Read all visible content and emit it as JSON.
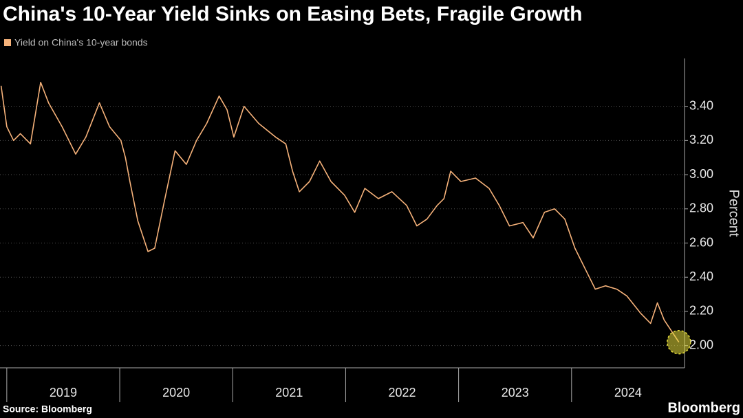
{
  "chart_data": {
    "type": "line",
    "title": "China's 10-Year Yield Sinks on Easing Bets, Fragile Growth",
    "ylabel": "Percent",
    "source": "Source: Bloomberg",
    "brand": "Bloomberg",
    "series": [
      {
        "name": "Yield on China's 10-year bonds",
        "color": "#f6b27a",
        "x": [
          2018.95,
          2019.0,
          2019.06,
          2019.12,
          2019.21,
          2019.3,
          2019.37,
          2019.49,
          2019.61,
          2019.7,
          2019.82,
          2019.91,
          2020.01,
          2020.05,
          2020.09,
          2020.16,
          2020.25,
          2020.31,
          2020.4,
          2020.49,
          2020.59,
          2020.68,
          2020.77,
          2020.88,
          2020.95,
          2021.01,
          2021.1,
          2021.23,
          2021.38,
          2021.47,
          2021.53,
          2021.59,
          2021.68,
          2021.77,
          2021.87,
          2021.99,
          2022.08,
          2022.17,
          2022.29,
          2022.41,
          2022.54,
          2022.63,
          2022.72,
          2022.81,
          2022.87,
          2022.93,
          2023.02,
          2023.15,
          2023.27,
          2023.36,
          2023.45,
          2023.57,
          2023.66,
          2023.76,
          2023.85,
          2023.94,
          2024.03,
          2024.12,
          2024.21,
          2024.3,
          2024.4,
          2024.49,
          2024.61,
          2024.7,
          2024.76,
          2024.82,
          2024.88,
          2024.95
        ],
        "values": [
          3.52,
          3.28,
          3.2,
          3.24,
          3.18,
          3.54,
          3.42,
          3.28,
          3.12,
          3.22,
          3.42,
          3.28,
          3.2,
          3.1,
          2.96,
          2.73,
          2.55,
          2.57,
          2.86,
          3.14,
          3.06,
          3.2,
          3.3,
          3.46,
          3.38,
          3.22,
          3.4,
          3.3,
          3.22,
          3.18,
          3.02,
          2.9,
          2.96,
          3.08,
          2.96,
          2.88,
          2.78,
          2.92,
          2.86,
          2.9,
          2.82,
          2.7,
          2.74,
          2.82,
          2.86,
          3.02,
          2.96,
          2.98,
          2.92,
          2.82,
          2.7,
          2.72,
          2.63,
          2.78,
          2.8,
          2.74,
          2.57,
          2.45,
          2.33,
          2.35,
          2.33,
          2.29,
          2.19,
          2.13,
          2.25,
          2.15,
          2.09,
          2.02
        ]
      }
    ],
    "xlim": [
      2018.94,
      2025.0
    ],
    "xticks": [
      {
        "value": 2019.5,
        "label": "2019"
      },
      {
        "value": 2020.5,
        "label": "2020"
      },
      {
        "value": 2021.5,
        "label": "2021"
      },
      {
        "value": 2022.5,
        "label": "2022"
      },
      {
        "value": 2023.5,
        "label": "2023"
      },
      {
        "value": 2024.5,
        "label": "2024"
      }
    ],
    "xdividers": [
      2019,
      2020,
      2021,
      2022,
      2023,
      2024
    ],
    "ylim": [
      1.87,
      3.68
    ],
    "yticks": [
      {
        "value": 2.0,
        "label": "2.00"
      },
      {
        "value": 2.2,
        "label": "2.20"
      },
      {
        "value": 2.4,
        "label": "2.40"
      },
      {
        "value": 2.6,
        "label": "2.60"
      },
      {
        "value": 2.8,
        "label": "2.80"
      },
      {
        "value": 3.0,
        "label": "3.00"
      },
      {
        "value": 3.2,
        "label": "3.20"
      },
      {
        "value": 3.4,
        "label": "3.40"
      }
    ],
    "grid": true
  }
}
